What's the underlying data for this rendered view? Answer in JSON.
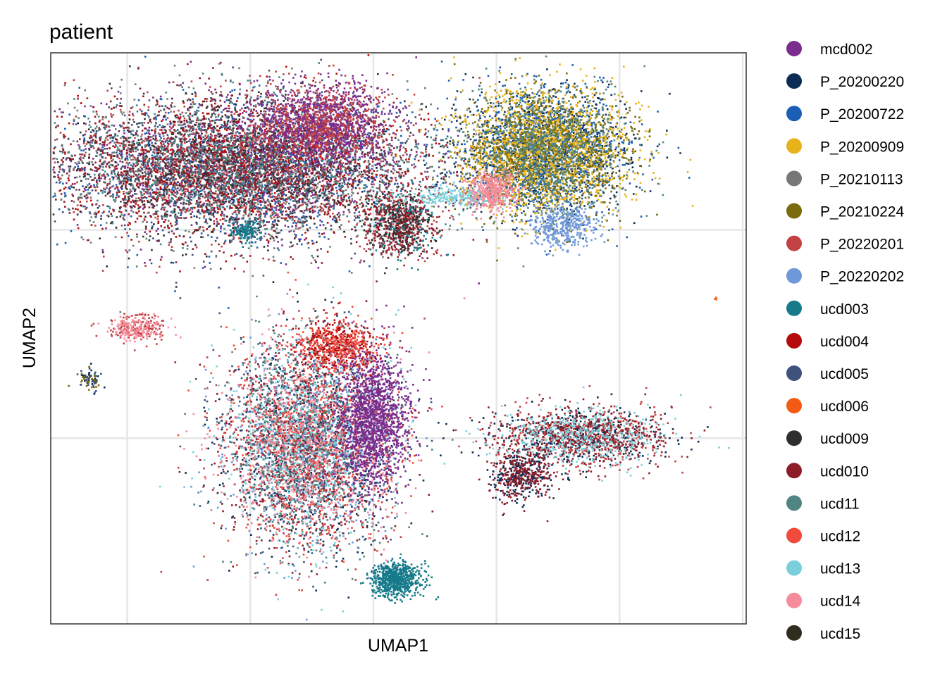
{
  "chart_data": {
    "type": "scatter",
    "title": "patient",
    "xlabel": "UMAP1",
    "ylabel": "UMAP2",
    "grid": true,
    "x_ticks_labeled": false,
    "y_ticks_labeled": false,
    "xlim": [
      0,
      1
    ],
    "ylim": [
      0,
      1
    ],
    "legend_position": "right",
    "series": [
      {
        "name": "mcd002",
        "color": "#7B2D8E"
      },
      {
        "name": "P_20200220",
        "color": "#0B2D55"
      },
      {
        "name": "P_20200722",
        "color": "#1B5EB5"
      },
      {
        "name": "P_20200909",
        "color": "#E8B21A"
      },
      {
        "name": "P_20210113",
        "color": "#777777"
      },
      {
        "name": "P_20210224",
        "color": "#7B6A0E"
      },
      {
        "name": "P_20220201",
        "color": "#C24243"
      },
      {
        "name": "P_20220202",
        "color": "#6E98D8"
      },
      {
        "name": "ucd003",
        "color": "#167A8A"
      },
      {
        "name": "ucd004",
        "color": "#B50B0B"
      },
      {
        "name": "ucd005",
        "color": "#3E527B"
      },
      {
        "name": "ucd006",
        "color": "#F45A13"
      },
      {
        "name": "ucd009",
        "color": "#2E2E2E"
      },
      {
        "name": "ucd010",
        "color": "#8C1D28"
      },
      {
        "name": "ucd11",
        "color": "#4F8583"
      },
      {
        "name": "ucd12",
        "color": "#F04B3D"
      },
      {
        "name": "ucd13",
        "color": "#7BCFDA"
      },
      {
        "name": "ucd14",
        "color": "#F58B9B"
      },
      {
        "name": "ucd15",
        "color": "#2E2D1E"
      }
    ],
    "clusters": [
      {
        "cx": 0.265,
        "cy": 0.8,
        "sx": 0.13,
        "sy": 0.06,
        "n": 9000,
        "mix": [
          6,
          9,
          13,
          12,
          14,
          10,
          0,
          2,
          4
        ]
      },
      {
        "cx": 0.385,
        "cy": 0.875,
        "sx": 0.05,
        "sy": 0.035,
        "n": 1800,
        "mix": [
          0,
          0,
          6
        ]
      },
      {
        "cx": 0.5,
        "cy": 0.7,
        "sx": 0.025,
        "sy": 0.03,
        "n": 900,
        "mix": [
          13,
          6,
          12,
          8
        ]
      },
      {
        "cx": 0.585,
        "cy": 0.75,
        "sx": 0.04,
        "sy": 0.008,
        "n": 300,
        "mix": [
          16
        ]
      },
      {
        "cx": 0.71,
        "cy": 0.83,
        "sx": 0.06,
        "sy": 0.055,
        "n": 5500,
        "mix": [
          3,
          5,
          3,
          14,
          2,
          1
        ]
      },
      {
        "cx": 0.635,
        "cy": 0.76,
        "sx": 0.018,
        "sy": 0.018,
        "n": 400,
        "mix": [
          17
        ]
      },
      {
        "cx": 0.735,
        "cy": 0.7,
        "sx": 0.025,
        "sy": 0.02,
        "n": 400,
        "mix": [
          7
        ]
      },
      {
        "cx": 0.28,
        "cy": 0.69,
        "sx": 0.01,
        "sy": 0.01,
        "n": 150,
        "mix": [
          8
        ]
      },
      {
        "cx": 0.12,
        "cy": 0.52,
        "sx": 0.02,
        "sy": 0.012,
        "n": 300,
        "mix": [
          17,
          6
        ]
      },
      {
        "cx": 0.055,
        "cy": 0.43,
        "sx": 0.008,
        "sy": 0.012,
        "n": 80,
        "mix": [
          1,
          5,
          10
        ]
      },
      {
        "cx": 0.37,
        "cy": 0.32,
        "sx": 0.06,
        "sy": 0.09,
        "n": 6000,
        "mix": [
          1,
          10,
          7,
          6,
          13,
          15,
          17,
          16,
          14
        ]
      },
      {
        "cx": 0.46,
        "cy": 0.36,
        "sx": 0.025,
        "sy": 0.06,
        "n": 1500,
        "mix": [
          0
        ]
      },
      {
        "cx": 0.41,
        "cy": 0.49,
        "sx": 0.03,
        "sy": 0.02,
        "n": 600,
        "mix": [
          15,
          9
        ]
      },
      {
        "cx": 0.76,
        "cy": 0.33,
        "sx": 0.06,
        "sy": 0.025,
        "n": 1800,
        "mix": [
          1,
          13,
          6,
          16
        ]
      },
      {
        "cx": 0.675,
        "cy": 0.26,
        "sx": 0.022,
        "sy": 0.022,
        "n": 500,
        "mix": [
          1,
          13
        ]
      },
      {
        "cx": 0.495,
        "cy": 0.08,
        "sx": 0.018,
        "sy": 0.015,
        "n": 700,
        "mix": [
          8
        ]
      },
      {
        "cx": 0.955,
        "cy": 0.57,
        "sx": 0.002,
        "sy": 0.002,
        "n": 3,
        "mix": [
          11
        ]
      }
    ]
  }
}
